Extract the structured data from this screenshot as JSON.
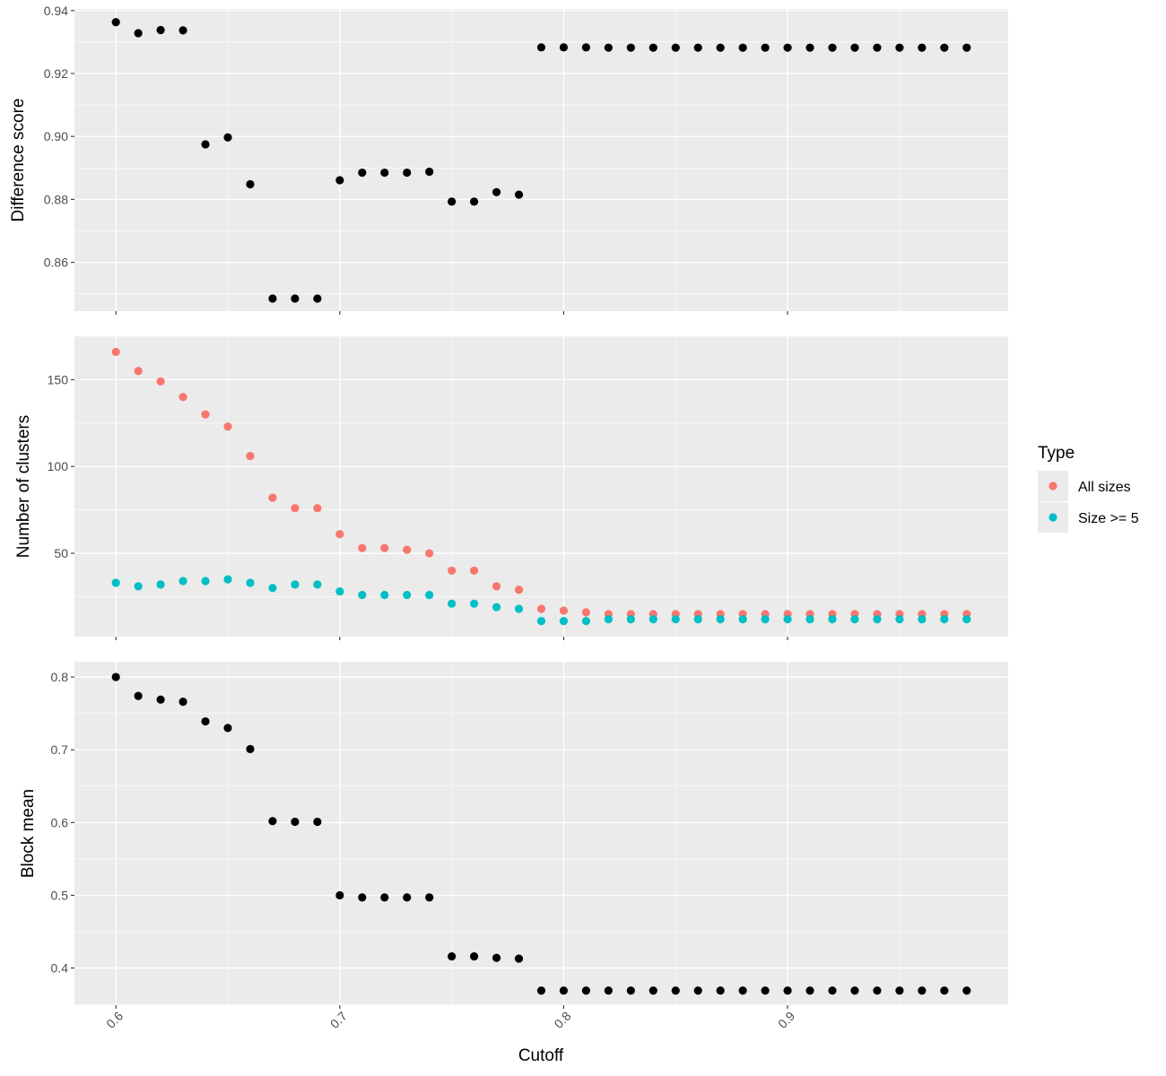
{
  "chart_data": {
    "type": "scatter",
    "xlabel": "Cutoff",
    "x_ticks": [
      "0.6",
      "0.7",
      "0.8",
      "0.9"
    ],
    "x": [
      0.6,
      0.61,
      0.62,
      0.63,
      0.64,
      0.65,
      0.66,
      0.67,
      0.68,
      0.69,
      0.7,
      0.71,
      0.72,
      0.73,
      0.74,
      0.75,
      0.76,
      0.77,
      0.78,
      0.79,
      0.8,
      0.81,
      0.82,
      0.83,
      0.84,
      0.85,
      0.86,
      0.87,
      0.88,
      0.89,
      0.9,
      0.91,
      0.92,
      0.93,
      0.94,
      0.95,
      0.96,
      0.97,
      0.98
    ],
    "xlim": [
      0.5815,
      0.9985
    ],
    "grid": true,
    "legend": {
      "title": "Type",
      "placement": "right",
      "entries": [
        {
          "label": "All sizes",
          "color": "#F8766D"
        },
        {
          "label": "Size >= 5",
          "color": "#00BFC4"
        }
      ]
    },
    "panels": [
      {
        "ylabel": "Difference score",
        "ylim": [
          0.8445,
          0.9405
        ],
        "y_ticks": [
          "0.86",
          "0.88",
          "0.90",
          "0.92",
          "0.94"
        ],
        "series": [
          {
            "color": "#000000",
            "values": [
              0.9363,
              0.9328,
              0.9338,
              0.9337,
              0.8975,
              0.8997,
              0.8848,
              0.8485,
              0.8485,
              0.8485,
              0.8861,
              0.8885,
              0.8885,
              0.8885,
              0.8888,
              0.8793,
              0.8793,
              0.8823,
              0.8815,
              0.9283,
              0.9283,
              0.9283,
              0.9282,
              0.9282,
              0.9282,
              0.9282,
              0.9282,
              0.9282,
              0.9282,
              0.9282,
              0.9282,
              0.9282,
              0.9282,
              0.9282,
              0.9282,
              0.9282,
              0.9282,
              0.9282,
              0.9282
            ]
          }
        ]
      },
      {
        "ylabel": "Number of clusters",
        "ylim": [
          2,
          175
        ],
        "y_ticks": [
          "50",
          "100",
          "150"
        ],
        "series": [
          {
            "name": "All sizes",
            "color": "#F8766D",
            "values": [
              166,
              155,
              149,
              140,
              130,
              123,
              106,
              82,
              76,
              76,
              61,
              53,
              53,
              52,
              50,
              40,
              40,
              31,
              29,
              18,
              17,
              16,
              15,
              15,
              15,
              15,
              15,
              15,
              15,
              15,
              15,
              15,
              15,
              15,
              15,
              15,
              15,
              15,
              15
            ]
          },
          {
            "name": "Size >= 5",
            "color": "#00BFC4",
            "values": [
              33,
              31,
              32,
              34,
              34,
              35,
              33,
              30,
              32,
              32,
              28,
              26,
              26,
              26,
              26,
              21,
              21,
              19,
              18,
              11,
              11,
              11,
              12,
              12,
              12,
              12,
              12,
              12,
              12,
              12,
              12,
              12,
              12,
              12,
              12,
              12,
              12,
              12,
              12
            ]
          }
        ]
      },
      {
        "ylabel": "Block mean",
        "ylim": [
          0.349,
          0.821
        ],
        "y_ticks": [
          "0.4",
          "0.5",
          "0.6",
          "0.7",
          "0.8"
        ],
        "series": [
          {
            "color": "#000000",
            "values": [
              0.8,
              0.774,
              0.769,
              0.766,
              0.739,
              0.73,
              0.701,
              0.602,
              0.601,
              0.601,
              0.5,
              0.497,
              0.497,
              0.497,
              0.497,
              0.416,
              0.416,
              0.414,
              0.413,
              0.369,
              0.369,
              0.369,
              0.369,
              0.369,
              0.369,
              0.369,
              0.369,
              0.369,
              0.369,
              0.369,
              0.369,
              0.369,
              0.369,
              0.369,
              0.369,
              0.369,
              0.369,
              0.369,
              0.369
            ]
          }
        ]
      }
    ]
  }
}
